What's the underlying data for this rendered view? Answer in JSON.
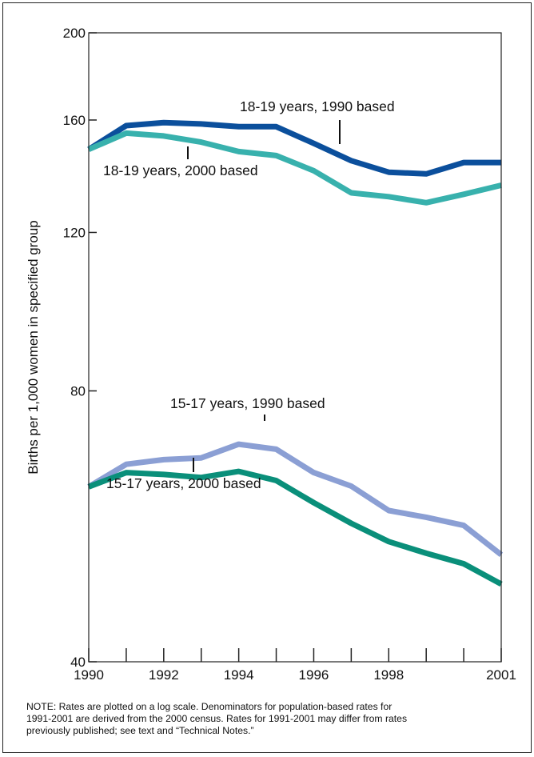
{
  "chart_data": {
    "type": "line",
    "ylabel": "Births per 1,000 women in specified group",
    "y_scale": "log",
    "ylim": [
      40,
      200
    ],
    "y_ticks": [
      "40",
      "80",
      "120",
      "160",
      "200"
    ],
    "x_ticks": [
      "1990",
      "1992",
      "1994",
      "1996",
      "1998",
      "2001"
    ],
    "x": [
      1990,
      1991,
      1992,
      1993,
      1994,
      1995,
      1996,
      1997,
      1998,
      1999,
      2000,
      2001
    ],
    "grid": false,
    "series": [
      {
        "name": "18-19 years, 1990 based",
        "color": "#0b4f9c",
        "values": [
          148.4,
          157.7,
          158.9,
          158.4,
          157.3,
          157.3,
          150.7,
          144.2,
          140.0,
          139.4,
          143.5,
          143.5
        ]
      },
      {
        "name": "18-19 years, 2000 based",
        "color": "#38b1ad",
        "values": [
          148.4,
          154.7,
          153.6,
          151.2,
          147.6,
          146.1,
          140.5,
          132.8,
          131.5,
          129.5,
          132.3,
          135.4
        ]
      },
      {
        "name": "15-17 years, 1990 based",
        "color": "#8b9fd4",
        "values": [
          62.6,
          66.3,
          67.1,
          67.4,
          69.8,
          68.9,
          64.9,
          62.7,
          58.9,
          57.9,
          56.7,
          52.6
        ]
      },
      {
        "name": "15-17 years, 2000 based",
        "color": "#0a8f7a",
        "values": [
          62.6,
          64.9,
          64.6,
          64.1,
          65.1,
          63.6,
          60.1,
          57.0,
          54.4,
          52.8,
          51.4,
          48.8
        ]
      }
    ]
  },
  "note": [
    "NOTE: Rates are plotted on a log scale.  Denominators for population-based rates for",
    "1991-2001 are derived from the 2000 census. Rates for 1991-2001 may differ from rates",
    "previously published; see text and “Technical Notes.”"
  ]
}
